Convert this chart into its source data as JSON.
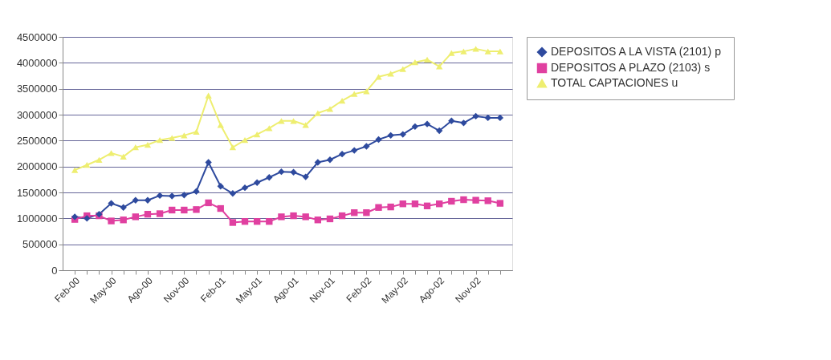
{
  "chart_data": {
    "type": "line",
    "categories": [
      "Feb-00",
      null,
      null,
      "May-00",
      null,
      null,
      "Ago-00",
      null,
      null,
      "Nov-00",
      null,
      null,
      "Feb-01",
      null,
      null,
      "May-01",
      null,
      null,
      "Ago-01",
      null,
      null,
      "Nov-01",
      null,
      null,
      "Feb-02",
      null,
      null,
      "May-02",
      null,
      null,
      "Ago-02",
      null,
      null,
      "Nov-02",
      null,
      null
    ],
    "series": [
      {
        "name": "DEPOSITOS A LA VISTA (2101) p",
        "color": "#2e4a9e",
        "marker": "diamond",
        "values": [
          1030000,
          1000000,
          1080000,
          1290000,
          1210000,
          1350000,
          1350000,
          1440000,
          1430000,
          1450000,
          1520000,
          2080000,
          1620000,
          1480000,
          1590000,
          1690000,
          1790000,
          1900000,
          1890000,
          1800000,
          2080000,
          2130000,
          2240000,
          2310000,
          2390000,
          2520000,
          2600000,
          2620000,
          2770000,
          2820000,
          2690000,
          2880000,
          2840000,
          2970000,
          2940000,
          2940000
        ]
      },
      {
        "name": "DEPOSITOS A PLAZO (2103) s",
        "color": "#e040a0",
        "marker": "square",
        "values": [
          980000,
          1050000,
          1050000,
          950000,
          970000,
          1030000,
          1080000,
          1090000,
          1160000,
          1160000,
          1170000,
          1300000,
          1190000,
          920000,
          940000,
          940000,
          940000,
          1030000,
          1050000,
          1030000,
          970000,
          990000,
          1050000,
          1110000,
          1110000,
          1210000,
          1220000,
          1280000,
          1280000,
          1240000,
          1280000,
          1330000,
          1360000,
          1350000,
          1340000,
          1290000
        ]
      },
      {
        "name": "TOTAL CAPTACIONES u",
        "color": "#eeee70",
        "marker": "triangle",
        "values": [
          1930000,
          2030000,
          2130000,
          2260000,
          2190000,
          2370000,
          2420000,
          2510000,
          2550000,
          2600000,
          2670000,
          3370000,
          2800000,
          2370000,
          2510000,
          2620000,
          2740000,
          2880000,
          2880000,
          2800000,
          3030000,
          3110000,
          3270000,
          3400000,
          3450000,
          3730000,
          3790000,
          3880000,
          4010000,
          4060000,
          3930000,
          4190000,
          4220000,
          4270000,
          4220000,
          4220000
        ]
      }
    ],
    "ylim": [
      0,
      4500000
    ],
    "yticks": [
      0,
      500000,
      1000000,
      1500000,
      2000000,
      2500000,
      3000000,
      3500000,
      4000000,
      4500000
    ],
    "grid": "y",
    "legend": "right"
  }
}
